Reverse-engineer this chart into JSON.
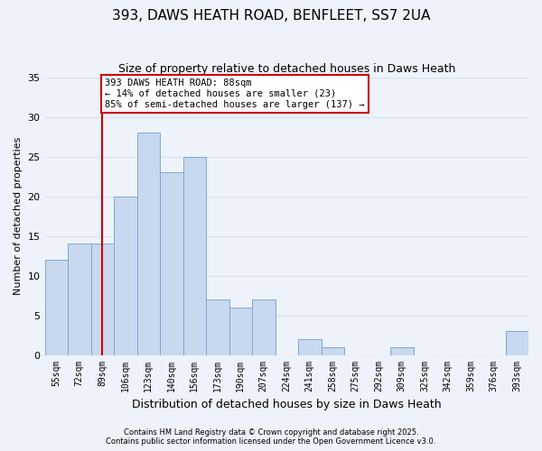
{
  "title": "393, DAWS HEATH ROAD, BENFLEET, SS7 2UA",
  "subtitle": "Size of property relative to detached houses in Daws Heath",
  "xlabel": "Distribution of detached houses by size in Daws Heath",
  "ylabel": "Number of detached properties",
  "categories": [
    "55sqm",
    "72sqm",
    "89sqm",
    "106sqm",
    "123sqm",
    "140sqm",
    "156sqm",
    "173sqm",
    "190sqm",
    "207sqm",
    "224sqm",
    "241sqm",
    "258sqm",
    "275sqm",
    "292sqm",
    "309sqm",
    "325sqm",
    "342sqm",
    "359sqm",
    "376sqm",
    "393sqm"
  ],
  "values": [
    12,
    14,
    14,
    20,
    28,
    23,
    25,
    7,
    6,
    7,
    0,
    2,
    1,
    0,
    0,
    1,
    0,
    0,
    0,
    0,
    3
  ],
  "bar_color": "#c8d8ee",
  "bar_edge_color": "#7aaad0",
  "ylim": [
    0,
    35
  ],
  "yticks": [
    0,
    5,
    10,
    15,
    20,
    25,
    30,
    35
  ],
  "vline_x_index": 2,
  "vline_color": "#cc0000",
  "annotation_line1": "393 DAWS HEATH ROAD: 88sqm",
  "annotation_line2": "← 14% of detached houses are smaller (23)",
  "annotation_line3": "85% of semi-detached houses are larger (137) →",
  "annotation_box_color": "#ffffff",
  "annotation_box_edge": "#cc0000",
  "footer1": "Contains HM Land Registry data © Crown copyright and database right 2025.",
  "footer2": "Contains public sector information licensed under the Open Government Licence v3.0.",
  "background_color": "#eef2fa",
  "grid_color": "#d8e4f0"
}
